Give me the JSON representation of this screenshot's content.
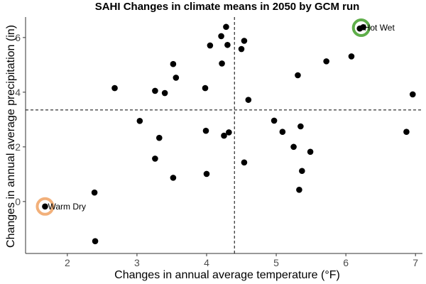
{
  "chart_data": {
    "type": "scatter",
    "title": "SAHI Changes in climate means in 2050 by GCM run",
    "xlabel": "Changes in annual average temperature (°F)",
    "ylabel": "Changes in annual average precipitation (in)",
    "xlim": [
      1.4,
      7.1
    ],
    "ylim": [
      -1.9,
      6.75
    ],
    "xticks": [
      2,
      3,
      4,
      5,
      6,
      7
    ],
    "yticks": [
      0,
      2,
      4,
      6
    ],
    "grid": false,
    "reference_lines": {
      "x": 4.4,
      "y": 3.35,
      "style": "dashed"
    },
    "points": [
      {
        "x": 1.68,
        "y": -0.18
      },
      {
        "x": 2.39,
        "y": 0.33
      },
      {
        "x": 2.4,
        "y": -1.45
      },
      {
        "x": 2.68,
        "y": 4.15
      },
      {
        "x": 3.04,
        "y": 2.95
      },
      {
        "x": 3.26,
        "y": 4.05
      },
      {
        "x": 3.26,
        "y": 1.57
      },
      {
        "x": 3.32,
        "y": 2.33
      },
      {
        "x": 3.4,
        "y": 3.97
      },
      {
        "x": 3.52,
        "y": 5.03
      },
      {
        "x": 3.52,
        "y": 0.87
      },
      {
        "x": 3.56,
        "y": 4.53
      },
      {
        "x": 3.98,
        "y": 4.15
      },
      {
        "x": 3.99,
        "y": 2.59
      },
      {
        "x": 4.0,
        "y": 1.01
      },
      {
        "x": 4.05,
        "y": 5.71
      },
      {
        "x": 4.21,
        "y": 6.05
      },
      {
        "x": 4.22,
        "y": 5.05
      },
      {
        "x": 4.25,
        "y": 2.41
      },
      {
        "x": 4.28,
        "y": 6.39
      },
      {
        "x": 4.3,
        "y": 5.73
      },
      {
        "x": 4.32,
        "y": 2.53
      },
      {
        "x": 4.5,
        "y": 5.58
      },
      {
        "x": 4.54,
        "y": 5.88
      },
      {
        "x": 4.54,
        "y": 1.43
      },
      {
        "x": 4.6,
        "y": 3.72
      },
      {
        "x": 4.97,
        "y": 2.96
      },
      {
        "x": 5.09,
        "y": 2.55
      },
      {
        "x": 5.25,
        "y": 2.0
      },
      {
        "x": 5.31,
        "y": 4.62
      },
      {
        "x": 5.35,
        "y": 2.75
      },
      {
        "x": 5.33,
        "y": 0.43
      },
      {
        "x": 5.37,
        "y": 1.12
      },
      {
        "x": 5.49,
        "y": 1.82
      },
      {
        "x": 5.72,
        "y": 5.13
      },
      {
        "x": 6.08,
        "y": 5.31
      },
      {
        "x": 6.2,
        "y": 6.33
      },
      {
        "x": 6.25,
        "y": 6.38
      },
      {
        "x": 6.87,
        "y": 2.55
      },
      {
        "x": 6.96,
        "y": 3.92
      }
    ],
    "annotations": [
      {
        "label": "Warm Dry",
        "x": 1.68,
        "y": -0.18,
        "ring_color": "#f2b07a"
      },
      {
        "label": "Hot Wet",
        "x": 6.22,
        "y": 6.36,
        "ring_color": "#5fae4a"
      }
    ],
    "point_color": "#000000"
  }
}
